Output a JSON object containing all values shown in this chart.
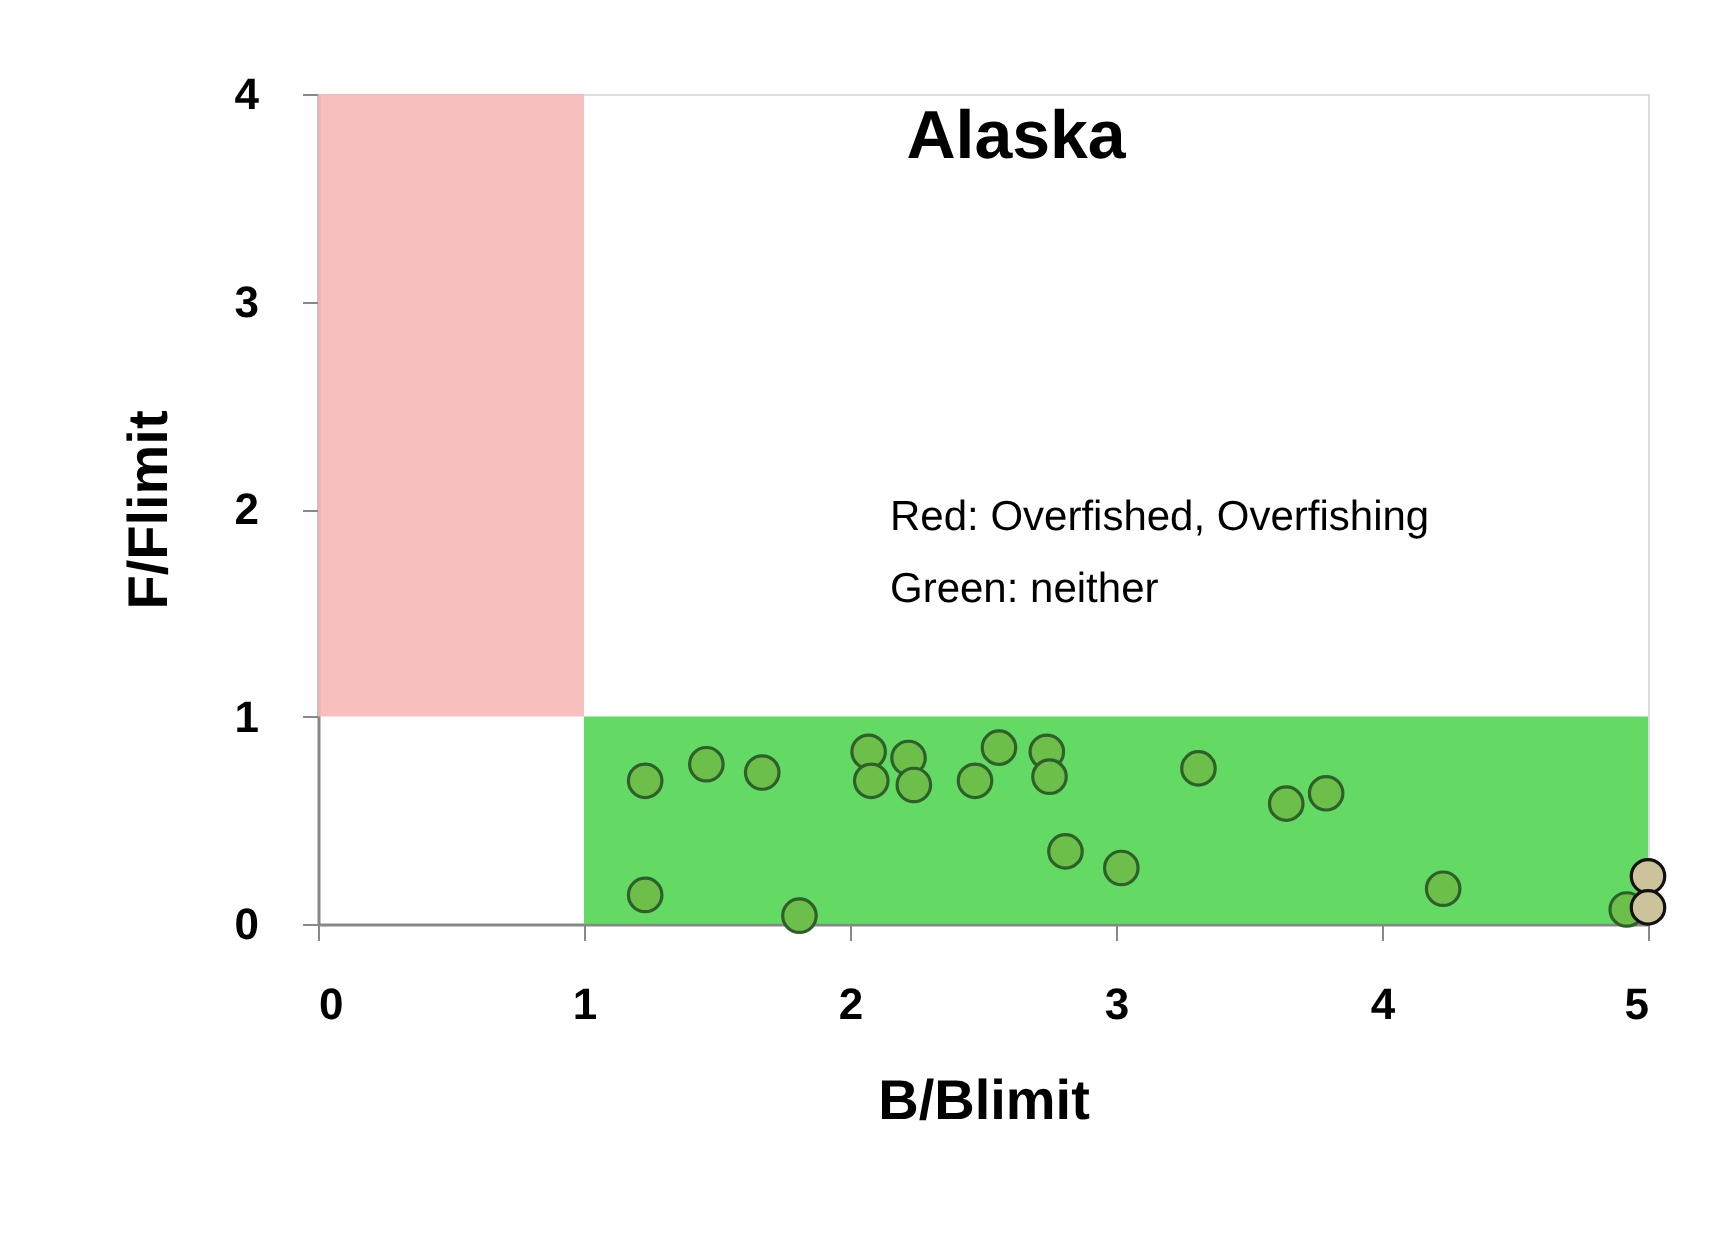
{
  "chart_data": {
    "type": "scatter",
    "title": "Alaska",
    "xlabel": "B/Blimit",
    "ylabel": "F/Flimit",
    "xlim": [
      0,
      5
    ],
    "xticks": [
      0,
      1,
      2,
      3,
      4,
      5
    ],
    "ylim": [
      0,
      4
    ],
    "yticks": [
      0,
      1,
      2,
      3,
      4
    ],
    "grid": false,
    "marker": "circle",
    "series": [
      {
        "color": "#6cc04a",
        "x": [
          1.23,
          1.46,
          1.67,
          2.07,
          2.08,
          2.22,
          2.24,
          2.47,
          2.56,
          2.74,
          2.75,
          2.81,
          1.23,
          1.81,
          3.02,
          3.31,
          3.64,
          3.79,
          4.23,
          4.92
        ],
        "values": [
          0.69,
          0.77,
          0.73,
          0.83,
          0.69,
          0.8,
          0.67,
          0.69,
          0.85,
          0.83,
          0.71,
          0.35,
          0.14,
          0.04,
          0.27,
          0.75,
          0.58,
          0.63,
          0.17,
          0.07
        ]
      },
      {
        "color": "#cdc39b",
        "x": [
          5.0,
          5.0
        ],
        "values": [
          0.23,
          0.08
        ]
      }
    ],
    "bands": [
      {
        "axis": "x",
        "from": 0,
        "to": 1,
        "color": "#f7b8b8"
      },
      {
        "axis": "y",
        "from": 0,
        "to": 1,
        "color": "#52d652"
      }
    ],
    "annotations": [
      "Red: Overfished, Overfishing",
      "Green: neither"
    ]
  }
}
